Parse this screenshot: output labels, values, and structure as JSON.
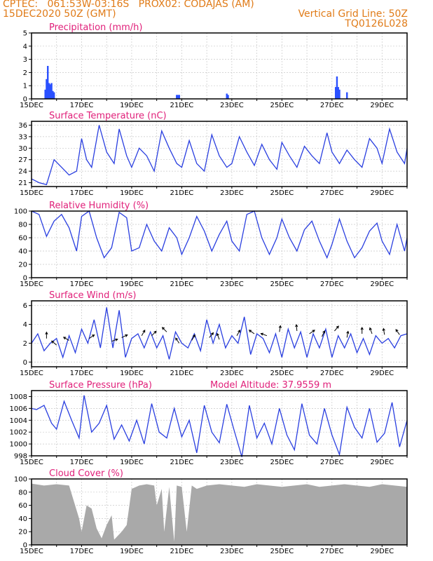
{
  "header": {
    "line1_left": "CPTEC:   061:53W-03:16S   PROX02: CODAJAS (AM)",
    "line2_left": "15DEC2020 50Z (GMT)",
    "line2_right": "Vertical Grid Line: 50Z",
    "line3_right": "TQ0126L028"
  },
  "colors": {
    "header": "#e07b18",
    "title": "#e0207a",
    "line": "#2a3fe0",
    "bar": "#2a50ff",
    "cloud": "#a9a9a9"
  },
  "x_days": [
    "15DEC",
    "17DEC",
    "19DEC",
    "21DEC",
    "23DEC",
    "25DEC",
    "27DEC",
    "29DEC"
  ],
  "x_range": [
    15,
    30
  ],
  "chart_data": [
    {
      "type": "bar",
      "title": "Precipitation (mm/h)",
      "ylim": [
        0,
        5
      ],
      "yticks": [
        0,
        1,
        2,
        3,
        4,
        5
      ],
      "points": [
        [
          15.55,
          0.7
        ],
        [
          15.6,
          1.5
        ],
        [
          15.65,
          2.5
        ],
        [
          15.7,
          1.2
        ],
        [
          15.75,
          1.1
        ],
        [
          15.8,
          1.2
        ],
        [
          15.85,
          0.6
        ],
        [
          15.9,
          0.5
        ],
        [
          20.8,
          0.3
        ],
        [
          20.85,
          0.3
        ],
        [
          20.9,
          0.3
        ],
        [
          22.8,
          0.4
        ],
        [
          22.85,
          0.3
        ],
        [
          27.15,
          0.9
        ],
        [
          27.2,
          1.7
        ],
        [
          27.25,
          0.9
        ],
        [
          27.3,
          0.7
        ],
        [
          27.6,
          0.5
        ]
      ]
    },
    {
      "type": "line",
      "title": "Surface Temperature (nC)",
      "ylim": [
        20,
        37
      ],
      "yticks": [
        21,
        24,
        27,
        30,
        33,
        36
      ],
      "x": [
        15.0,
        15.3,
        15.6,
        15.9,
        16.2,
        16.5,
        16.8,
        17.0,
        17.2,
        17.4,
        17.7,
        18.0,
        18.3,
        18.5,
        18.8,
        19.0,
        19.3,
        19.6,
        19.9,
        20.2,
        20.5,
        20.8,
        21.0,
        21.3,
        21.6,
        21.9,
        22.2,
        22.5,
        22.8,
        23.0,
        23.3,
        23.6,
        23.9,
        24.2,
        24.5,
        24.8,
        25.0,
        25.3,
        25.6,
        25.9,
        26.2,
        26.5,
        26.8,
        27.0,
        27.3,
        27.6,
        27.9,
        28.2,
        28.5,
        28.8,
        29.0,
        29.3,
        29.6,
        29.9,
        30.0
      ],
      "values": [
        22,
        21,
        20.5,
        27,
        25,
        23,
        24,
        32.5,
        27,
        25,
        36,
        29,
        26,
        35,
        28,
        25,
        30,
        28,
        24,
        34.5,
        30,
        26,
        25,
        32,
        26,
        24,
        33.5,
        28,
        25,
        26,
        33,
        29,
        25.5,
        31,
        27,
        24.5,
        31.5,
        28,
        25,
        30.5,
        28,
        26,
        34,
        29,
        26,
        29.5,
        27,
        25,
        32.5,
        30,
        26,
        35,
        29,
        26,
        30
      ]
    },
    {
      "type": "line",
      "title": "Relative Humidity (%)",
      "ylim": [
        0,
        100
      ],
      "yticks": [
        0,
        20,
        40,
        60,
        80,
        100
      ],
      "x": [
        15.0,
        15.3,
        15.6,
        15.9,
        16.2,
        16.5,
        16.8,
        17.0,
        17.3,
        17.6,
        17.9,
        18.2,
        18.5,
        18.8,
        19.0,
        19.3,
        19.6,
        19.9,
        20.2,
        20.5,
        20.8,
        21.0,
        21.3,
        21.6,
        21.9,
        22.2,
        22.5,
        22.8,
        23.0,
        23.3,
        23.6,
        23.9,
        24.2,
        24.5,
        24.8,
        25.0,
        25.3,
        25.6,
        25.9,
        26.2,
        26.5,
        26.8,
        27.0,
        27.3,
        27.6,
        27.9,
        28.2,
        28.5,
        28.8,
        29.0,
        29.3,
        29.6,
        29.9,
        30.0
      ],
      "values": [
        100,
        95,
        62,
        85,
        95,
        75,
        40,
        92,
        100,
        60,
        30,
        45,
        98,
        90,
        40,
        45,
        80,
        55,
        40,
        75,
        60,
        35,
        60,
        92,
        70,
        40,
        65,
        85,
        55,
        40,
        95,
        100,
        60,
        35,
        60,
        88,
        60,
        40,
        72,
        85,
        55,
        30,
        50,
        88,
        55,
        30,
        45,
        70,
        82,
        55,
        35,
        80,
        40,
        60
      ]
    },
    {
      "type": "line",
      "title": "Surface Wind (m/s)",
      "ylim": [
        -0.5,
        6.5
      ],
      "yticks": [
        0,
        2,
        4,
        6
      ],
      "x": [
        15.0,
        15.25,
        15.5,
        15.75,
        16.0,
        16.25,
        16.5,
        16.75,
        17.0,
        17.25,
        17.5,
        17.75,
        18.0,
        18.25,
        18.5,
        18.75,
        19.0,
        19.25,
        19.5,
        19.75,
        20.0,
        20.25,
        20.5,
        20.75,
        21.0,
        21.25,
        21.5,
        21.75,
        22.0,
        22.25,
        22.5,
        22.75,
        23.0,
        23.25,
        23.5,
        23.75,
        24.0,
        24.25,
        24.5,
        24.75,
        25.0,
        25.25,
        25.5,
        25.75,
        26.0,
        26.25,
        26.5,
        26.75,
        27.0,
        27.25,
        27.5,
        27.75,
        28.0,
        28.25,
        28.5,
        28.75,
        29.0,
        29.25,
        29.5,
        29.75,
        30.0
      ],
      "values": [
        2.0,
        3.0,
        1.2,
        2.0,
        2.5,
        0.5,
        2.8,
        1.0,
        3.5,
        2.0,
        4.5,
        1.5,
        5.8,
        1.5,
        5.5,
        0.5,
        2.5,
        3.0,
        1.5,
        3.2,
        1.5,
        2.8,
        0.3,
        3.2,
        2.0,
        1.5,
        3.0,
        1.2,
        4.5,
        2.0,
        4.0,
        1.5,
        2.8,
        2.0,
        4.8,
        0.8,
        3.0,
        2.5,
        1.0,
        3.0,
        0.5,
        3.5,
        1.5,
        3.2,
        0.5,
        3.0,
        1.5,
        3.5,
        0.5,
        2.8,
        1.5,
        3.0,
        1.0,
        2.5,
        0.8,
        2.8,
        2.0,
        2.5,
        1.5,
        2.8,
        3.0
      ],
      "arrows": [
        [
          15.6,
          2.5,
          -90
        ],
        [
          16.0,
          1.8,
          -140
        ],
        [
          16.5,
          2.3,
          -150
        ],
        [
          17.3,
          2.5,
          -35
        ],
        [
          18.2,
          2.2,
          -20
        ],
        [
          18.6,
          2.6,
          -25
        ],
        [
          19.4,
          2.8,
          -60
        ],
        [
          19.8,
          2.8,
          -45
        ],
        [
          20.4,
          3.2,
          -135
        ],
        [
          20.9,
          2.0,
          -125
        ],
        [
          21.4,
          2.3,
          -60
        ],
        [
          22.1,
          2.6,
          -50
        ],
        [
          22.5,
          2.4,
          -110
        ],
        [
          23.2,
          2.8,
          -60
        ],
        [
          23.9,
          3.0,
          -145
        ],
        [
          24.4,
          2.8,
          -160
        ],
        [
          24.9,
          3.2,
          -80
        ],
        [
          25.6,
          3.3,
          -95
        ],
        [
          26.1,
          3.0,
          -35
        ],
        [
          26.6,
          2.7,
          -65
        ],
        [
          27.1,
          3.3,
          -50
        ],
        [
          27.6,
          2.6,
          -80
        ],
        [
          28.2,
          3.0,
          -90
        ],
        [
          28.6,
          3.0,
          -110
        ],
        [
          29.1,
          2.9,
          -100
        ],
        [
          29.7,
          2.9,
          -125
        ]
      ]
    },
    {
      "type": "line",
      "title": "Surface Pressure (hPa)",
      "annotation": "Model Altitude: 37.9559 m",
      "ylim": [
        998,
        1009
      ],
      "yticks": [
        998,
        1000,
        1002,
        1004,
        1006,
        1008
      ],
      "x": [
        15.0,
        15.2,
        15.5,
        15.8,
        16.0,
        16.3,
        16.6,
        16.9,
        17.1,
        17.4,
        17.7,
        18.0,
        18.3,
        18.6,
        18.9,
        19.2,
        19.5,
        19.8,
        20.1,
        20.4,
        20.7,
        21.0,
        21.3,
        21.6,
        21.9,
        22.2,
        22.5,
        22.8,
        23.1,
        23.4,
        23.7,
        24.0,
        24.3,
        24.6,
        24.9,
        25.2,
        25.5,
        25.8,
        26.1,
        26.4,
        26.7,
        27.0,
        27.3,
        27.6,
        27.9,
        28.2,
        28.5,
        28.8,
        29.1,
        29.4,
        29.7,
        30.0
      ],
      "values": [
        1006,
        1005.8,
        1006.5,
        1003.5,
        1002.5,
        1007.2,
        1004,
        1001,
        1008.2,
        1002,
        1003.5,
        1006.5,
        1000.8,
        1003.2,
        1000.5,
        1004,
        1000,
        1006.8,
        1002,
        1001,
        1006,
        1001.2,
        1004,
        998.5,
        1006.5,
        1002,
        1000.2,
        1006.7,
        1002.2,
        997.8,
        1006.5,
        1001,
        1003.5,
        1000,
        1006,
        1001.5,
        999,
        1006.8,
        1001.5,
        1000,
        1006,
        1001.5,
        998.2,
        1006.2,
        1002.8,
        1001,
        1006,
        1000.3,
        1001.8,
        1007,
        999.5,
        1004
      ]
    },
    {
      "type": "area",
      "title": "Cloud Cover (%)",
      "ylim": [
        0,
        100
      ],
      "yticks": [
        0,
        20,
        40,
        60,
        80,
        100
      ],
      "x": [
        15.0,
        15.5,
        16.0,
        16.5,
        16.9,
        17.0,
        17.2,
        17.4,
        17.6,
        17.8,
        18.0,
        18.2,
        18.3,
        18.6,
        18.8,
        19.0,
        19.3,
        19.6,
        19.9,
        20.0,
        20.2,
        20.3,
        20.5,
        20.7,
        20.8,
        21.0,
        21.2,
        21.4,
        21.6,
        22.0,
        22.5,
        23.0,
        23.5,
        24.0,
        24.5,
        25.0,
        25.5,
        26.0,
        26.5,
        27.0,
        27.5,
        28.0,
        28.5,
        29.0,
        29.5,
        30.0
      ],
      "values": [
        93,
        90,
        92,
        90,
        40,
        20,
        60,
        55,
        25,
        10,
        30,
        45,
        8,
        20,
        30,
        85,
        90,
        92,
        90,
        60,
        85,
        20,
        88,
        5,
        90,
        88,
        20,
        90,
        85,
        90,
        92,
        90,
        88,
        92,
        90,
        88,
        90,
        92,
        88,
        90,
        92,
        90,
        88,
        92,
        90,
        88
      ]
    }
  ]
}
